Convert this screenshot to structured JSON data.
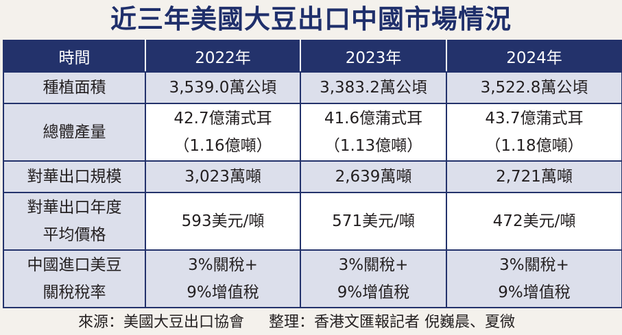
{
  "title": "近三年美國大豆出口中國市場情況",
  "colors": {
    "header_bg": "#23326b",
    "label_bg": "#dcdfeb",
    "title_color": "#1f2f6b"
  },
  "table": {
    "headers": [
      "時間",
      "2022年",
      "2023年",
      "2024年"
    ],
    "rows": [
      {
        "label": [
          "種植面積"
        ],
        "values": [
          [
            "3,539.0萬公頃"
          ],
          [
            "3,383.2萬公頃"
          ],
          [
            "3,522.8萬公頃"
          ]
        ]
      },
      {
        "label": [
          "總體產量"
        ],
        "values": [
          [
            "42.7億蒲式耳",
            "（1.16億噸）"
          ],
          [
            "41.6億蒲式耳",
            "（1.13億噸）"
          ],
          [
            "43.7億蒲式耳",
            "（1.18億噸）"
          ]
        ]
      },
      {
        "label": [
          "對華出口規模"
        ],
        "values": [
          [
            "3,023萬噸"
          ],
          [
            "2,639萬噸"
          ],
          [
            "2,721萬噸"
          ]
        ]
      },
      {
        "label": [
          "對華出口年度",
          "平均價格"
        ],
        "values": [
          [
            "593美元/噸"
          ],
          [
            "571美元/噸"
          ],
          [
            "472美元/噸"
          ]
        ]
      },
      {
        "label": [
          "中國進口美豆",
          "關稅稅率"
        ],
        "values": [
          [
            "3%關稅+",
            "9%增值稅"
          ],
          [
            "3%關稅+",
            "9%增值稅"
          ],
          [
            "3%關稅+",
            "9%增值稅"
          ]
        ]
      }
    ]
  },
  "footer": {
    "source": "來源：美國大豆出口協會",
    "editor": "整理：香港文匯報記者 倪巍晨、夏微"
  }
}
